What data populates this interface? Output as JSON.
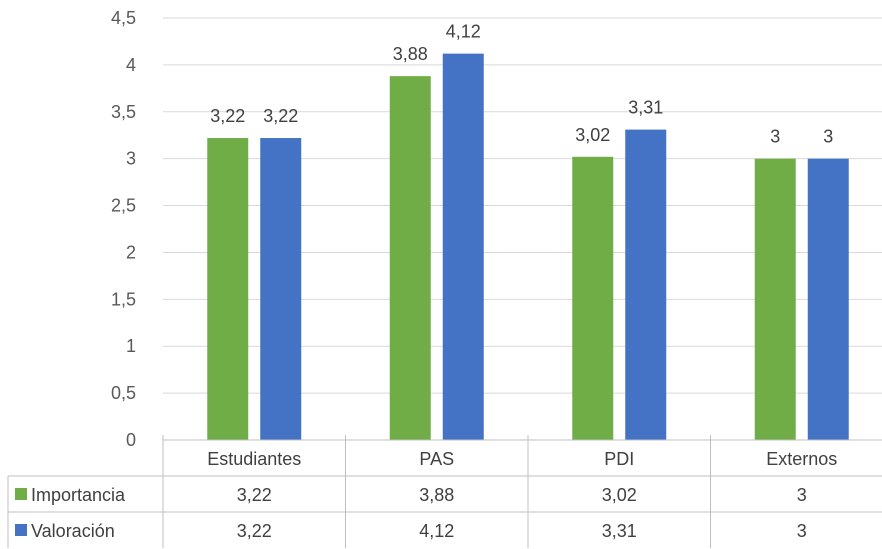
{
  "chart_data": {
    "type": "bar",
    "title": "",
    "xlabel": "",
    "ylabel": "",
    "categories": [
      "Estudiantes",
      "PAS",
      "PDI",
      "Externos"
    ],
    "series": [
      {
        "name": "Importancia",
        "color": "#70ad47",
        "values": [
          3.22,
          3.88,
          3.02,
          3
        ],
        "labels": [
          "3,22",
          "3,88",
          "3,02",
          "3"
        ]
      },
      {
        "name": "Valoración",
        "color": "#4472c4",
        "values": [
          3.22,
          4.12,
          3.31,
          3
        ],
        "labels": [
          "3,22",
          "4,12",
          "3,31",
          "3"
        ]
      }
    ],
    "ylim": [
      0,
      4.5
    ],
    "yticks": [
      0,
      0.5,
      1,
      1.5,
      2,
      2.5,
      3,
      3.5,
      4,
      4.5
    ],
    "ytick_labels": [
      "0",
      "0,5",
      "1",
      "1,5",
      "2",
      "2,5",
      "3",
      "3,5",
      "4",
      "4,5"
    ],
    "grid": true,
    "legend": "data-table",
    "data_table": true
  }
}
